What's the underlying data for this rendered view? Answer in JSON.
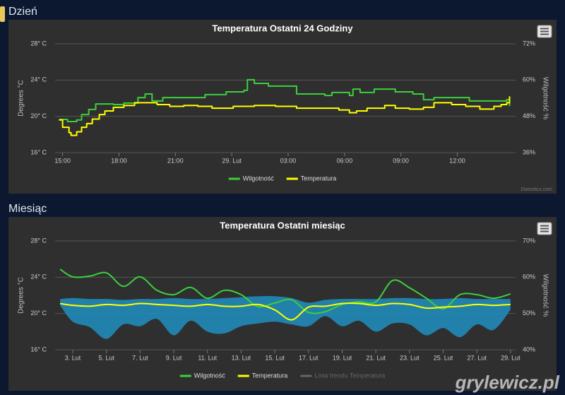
{
  "watermark": "grylewicz.pl",
  "chart_data": [
    {
      "heading": "Dzień",
      "type": "line",
      "step": true,
      "title": "Temperatura Ostatni 24 Godziny",
      "y_label": "Degrees °C",
      "y2_label": "Wilgotność %",
      "credits": "Domoticz.com",
      "grid": true,
      "xlim": [
        14.6,
        39.1
      ],
      "xticks": [
        {
          "value": 15,
          "label": "15:00"
        },
        {
          "value": 18,
          "label": "18:00"
        },
        {
          "value": 21,
          "label": "21:00"
        },
        {
          "value": 24,
          "label": "29. Lut"
        },
        {
          "value": 27,
          "label": "03:00"
        },
        {
          "value": 30,
          "label": "06:00"
        },
        {
          "value": 33,
          "label": "09:00"
        },
        {
          "value": 36,
          "label": "12:00"
        }
      ],
      "ylim": [
        16,
        28
      ],
      "yticks": [
        {
          "value": 16,
          "label": "16° C"
        },
        {
          "value": 20,
          "label": "20° C"
        },
        {
          "value": 24,
          "label": "24° C"
        },
        {
          "value": 28,
          "label": "28° C"
        }
      ],
      "y2lim": [
        36,
        72
      ],
      "y2ticks": [
        {
          "value": 36,
          "label": "36%"
        },
        {
          "value": 48,
          "label": "48%"
        },
        {
          "value": 60,
          "label": "60%"
        },
        {
          "value": 72,
          "label": "72%"
        }
      ],
      "series": [
        {
          "name": "Wilgotność",
          "color": "#3ccf3c",
          "axis": "y2",
          "x": [
            14.81,
            15.26,
            15.75,
            16.01,
            16.39,
            16.76,
            17.7,
            18.26,
            19.01,
            19.39,
            19.76,
            20.33,
            21.83,
            22.58,
            23.7,
            24.64,
            24.83,
            25.2,
            25.95,
            27.45,
            28.95,
            29.33,
            30.26,
            30.45,
            30.83,
            31.58,
            32.7,
            33.64,
            34.2,
            34.76,
            36.26,
            36.64,
            37.95,
            38.63,
            38.78
          ],
          "values": [
            47.0,
            46.3,
            46.8,
            48.6,
            50.3,
            52.1,
            51.9,
            52.4,
            54.2,
            55.4,
            53.1,
            54.2,
            54.2,
            55.2,
            56.1,
            56.6,
            60.1,
            58.9,
            58.0,
            55.4,
            54.9,
            55.9,
            54.9,
            57.0,
            55.9,
            57.0,
            56.1,
            55.4,
            53.5,
            54.2,
            54.2,
            53.1,
            53.1,
            53.5,
            51.4
          ]
        },
        {
          "name": "Temperatura",
          "color": "#ffff00",
          "x": [
            14.81,
            15,
            15.34,
            15.45,
            15.75,
            16.01,
            16.28,
            16.58,
            16.95,
            17.25,
            17.7,
            18.26,
            18.83,
            19.58,
            20.03,
            20.7,
            21.45,
            22.2,
            22.95,
            24.08,
            25.2,
            26.33,
            27.45,
            28.58,
            29.7,
            30.26,
            30.64,
            31.2,
            32.14,
            32.7,
            33.45,
            34.2,
            34.76,
            35.7,
            36.45,
            37.2,
            37.95,
            38.33,
            38.63,
            38.78
          ],
          "values": [
            19.6,
            18.8,
            18.2,
            17.9,
            18.3,
            18.8,
            19.2,
            19.7,
            20.2,
            20.6,
            21.0,
            21.2,
            21.5,
            21.5,
            21.3,
            21.1,
            21.2,
            21.1,
            20.9,
            21.1,
            21.2,
            21.1,
            20.9,
            20.9,
            20.7,
            20.4,
            20.6,
            20.9,
            21.2,
            20.9,
            20.8,
            21.0,
            21.5,
            21.3,
            21.1,
            20.8,
            21.1,
            21.3,
            21.5,
            22.2
          ]
        }
      ]
    },
    {
      "heading": "Miesiąc",
      "type": "line",
      "smooth": true,
      "title": "Temperatura Ostatni miesiąc",
      "y_label": "Degrees °C",
      "y2_label": "Wilgotność %",
      "grid": true,
      "xlim": [
        1.95,
        29.3
      ],
      "xticks": [
        {
          "value": 3,
          "label": "3. Lut"
        },
        {
          "value": 5,
          "label": "5. Lut"
        },
        {
          "value": 7,
          "label": "7. Lut"
        },
        {
          "value": 9,
          "label": "9. Lut"
        },
        {
          "value": 11,
          "label": "11. Lut"
        },
        {
          "value": 13,
          "label": "13. Lut"
        },
        {
          "value": 15,
          "label": "15. Lut"
        },
        {
          "value": 17,
          "label": "17. Lut"
        },
        {
          "value": 19,
          "label": "19. Lut"
        },
        {
          "value": 21,
          "label": "21. Lut"
        },
        {
          "value": 23,
          "label": "23. Lut"
        },
        {
          "value": 25,
          "label": "25. Lut"
        },
        {
          "value": 27,
          "label": "27. Lut"
        },
        {
          "value": 29,
          "label": "29. Lut"
        }
      ],
      "ylim": [
        16,
        28
      ],
      "yticks": [
        {
          "value": 16,
          "label": "16° C"
        },
        {
          "value": 20,
          "label": "20° C"
        },
        {
          "value": 24,
          "label": "24° C"
        },
        {
          "value": 28,
          "label": "28° C"
        }
      ],
      "y2lim": [
        40,
        70
      ],
      "y2ticks": [
        {
          "value": 40,
          "label": "40%"
        },
        {
          "value": 50,
          "label": "50%"
        },
        {
          "value": 60,
          "label": "60%"
        },
        {
          "value": 70,
          "label": "70%"
        }
      ],
      "x": [
        2.25,
        3,
        4,
        5,
        6,
        7,
        8,
        9,
        10,
        11,
        12,
        13,
        14,
        15,
        16,
        17,
        18,
        19,
        20,
        21,
        22,
        23,
        24,
        25,
        26,
        27,
        28,
        29
      ],
      "temperature_range": {
        "color": "#1f8fbf",
        "low": [
          20.9,
          19.1,
          18.5,
          17.2,
          18.8,
          18.6,
          19.4,
          17.6,
          19.2,
          18.0,
          17.8,
          18.6,
          18.9,
          19.1,
          18.8,
          18.6,
          19.7,
          18.6,
          19.2,
          18.0,
          18.9,
          18.8,
          17.6,
          18.4,
          17.4,
          18.8,
          18.2,
          20.4
        ],
        "high": [
          21.6,
          21.7,
          21.6,
          21.6,
          21.5,
          21.6,
          21.6,
          21.7,
          21.6,
          21.6,
          21.7,
          21.8,
          21.9,
          21.9,
          21.7,
          21.2,
          21.5,
          21.6,
          21.6,
          21.6,
          21.7,
          21.7,
          21.6,
          21.6,
          21.7,
          21.6,
          21.6,
          21.6
        ]
      },
      "series": [
        {
          "name": "Wilgotność",
          "color": "#3ccf3c",
          "axis": "y2",
          "values": [
            62.2,
            60.1,
            60.3,
            61.2,
            57.5,
            60.1,
            56.4,
            55.2,
            57.2,
            54.2,
            56.4,
            55.2,
            51.9,
            52.9,
            53.8,
            50.3,
            50.5,
            52.5,
            53.2,
            53.2,
            59.1,
            57.1,
            54.2,
            51.3,
            55.2,
            55.2,
            54.2,
            55.4
          ]
        },
        {
          "name": "Temperatura",
          "color": "#ffff00",
          "values": [
            21.1,
            20.9,
            20.8,
            21.0,
            20.9,
            21.1,
            21.0,
            20.9,
            20.8,
            21.0,
            20.8,
            20.8,
            21.0,
            20.4,
            19.3,
            20.7,
            20.8,
            21.1,
            21.1,
            20.9,
            21.1,
            21.0,
            20.6,
            20.7,
            20.8,
            21.0,
            20.9,
            21.0
          ]
        },
        {
          "name": "Linia trendu Temperatura",
          "color": "#666666",
          "visible": false
        }
      ]
    }
  ]
}
